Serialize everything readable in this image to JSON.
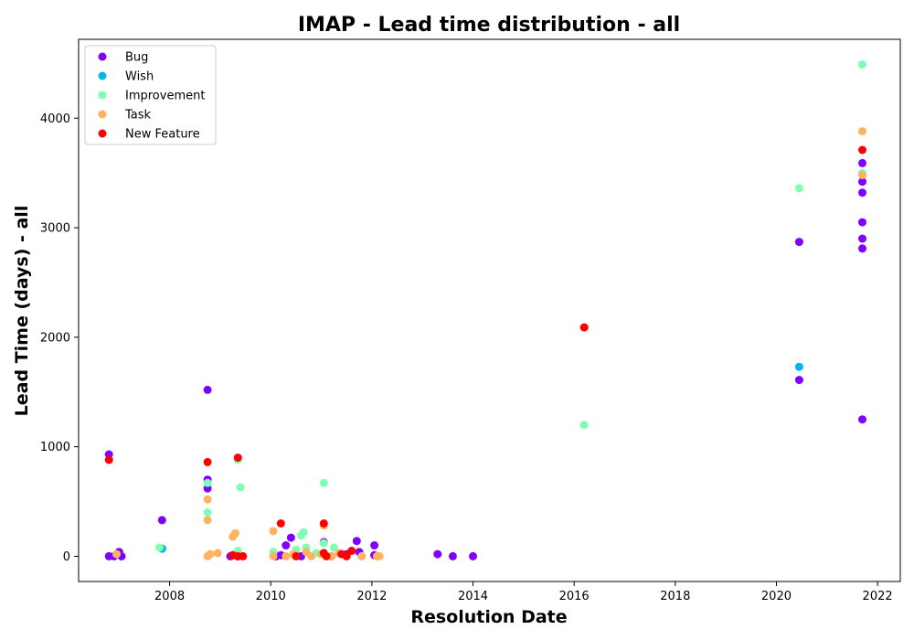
{
  "chart_data": {
    "type": "scatter",
    "title": "IMAP - Lead time distribution - all",
    "xlabel": "Resolution Date",
    "ylabel": "Lead Time (days) - all",
    "xlim": [
      2006.2,
      2022.45
    ],
    "ylim": [
      -230,
      4720
    ],
    "x_ticks": [
      2008,
      2010,
      2012,
      2014,
      2016,
      2018,
      2020,
      2022
    ],
    "y_ticks": [
      0,
      1000,
      2000,
      3000,
      4000
    ],
    "grid": false,
    "legend_position": "top-left",
    "series": [
      {
        "name": "Bug",
        "color": "#8000ff",
        "points": [
          [
            2006.8,
            0
          ],
          [
            2006.8,
            930
          ],
          [
            2006.9,
            0
          ],
          [
            2007.0,
            40
          ],
          [
            2007.05,
            0
          ],
          [
            2007.85,
            70
          ],
          [
            2007.85,
            330
          ],
          [
            2008.75,
            1520
          ],
          [
            2008.75,
            700
          ],
          [
            2008.75,
            620
          ],
          [
            2009.2,
            0
          ],
          [
            2009.25,
            10
          ],
          [
            2009.35,
            0
          ],
          [
            2010.1,
            0
          ],
          [
            2010.2,
            10
          ],
          [
            2010.3,
            100
          ],
          [
            2010.4,
            170
          ],
          [
            2010.6,
            0
          ],
          [
            2011.05,
            130
          ],
          [
            2011.2,
            0
          ],
          [
            2011.5,
            20
          ],
          [
            2011.7,
            140
          ],
          [
            2011.75,
            40
          ],
          [
            2012.05,
            100
          ],
          [
            2012.05,
            10
          ],
          [
            2013.3,
            20
          ],
          [
            2013.6,
            0
          ],
          [
            2014.0,
            0
          ],
          [
            2020.45,
            2870
          ],
          [
            2020.45,
            1610
          ],
          [
            2021.7,
            3590
          ],
          [
            2021.7,
            3420
          ],
          [
            2021.7,
            3320
          ],
          [
            2021.7,
            3050
          ],
          [
            2021.7,
            2900
          ],
          [
            2021.7,
            2810
          ],
          [
            2021.7,
            1250
          ]
        ]
      },
      {
        "name": "Wish",
        "color": "#00b5eb",
        "points": [
          [
            2007.85,
            70
          ],
          [
            2020.45,
            1730
          ]
        ]
      },
      {
        "name": "Improvement",
        "color": "#80ffb4",
        "points": [
          [
            2007.8,
            80
          ],
          [
            2008.75,
            670
          ],
          [
            2008.75,
            400
          ],
          [
            2009.35,
            880
          ],
          [
            2009.4,
            630
          ],
          [
            2009.35,
            50
          ],
          [
            2010.05,
            40
          ],
          [
            2010.5,
            60
          ],
          [
            2010.6,
            190
          ],
          [
            2010.65,
            220
          ],
          [
            2010.7,
            80
          ],
          [
            2010.9,
            30
          ],
          [
            2011.05,
            670
          ],
          [
            2011.05,
            120
          ],
          [
            2011.25,
            80
          ],
          [
            2011.8,
            0
          ],
          [
            2016.2,
            1200
          ],
          [
            2020.45,
            3360
          ],
          [
            2021.7,
            4490
          ],
          [
            2021.7,
            3500
          ]
        ]
      },
      {
        "name": "Task",
        "color": "#ffb360",
        "points": [
          [
            2006.95,
            20
          ],
          [
            2008.75,
            520
          ],
          [
            2008.75,
            330
          ],
          [
            2008.75,
            0
          ],
          [
            2008.8,
            20
          ],
          [
            2008.95,
            30
          ],
          [
            2009.25,
            180
          ],
          [
            2009.3,
            210
          ],
          [
            2010.05,
            230
          ],
          [
            2010.05,
            0
          ],
          [
            2010.3,
            0
          ],
          [
            2010.45,
            20
          ],
          [
            2010.7,
            40
          ],
          [
            2010.8,
            0
          ],
          [
            2011.0,
            20
          ],
          [
            2011.05,
            280
          ],
          [
            2011.2,
            0
          ],
          [
            2011.35,
            30
          ],
          [
            2011.8,
            0
          ],
          [
            2012.1,
            0
          ],
          [
            2012.15,
            0
          ],
          [
            2021.7,
            3880
          ],
          [
            2021.7,
            3480
          ]
        ]
      },
      {
        "name": "New Feature",
        "color": "#ff0000",
        "points": [
          [
            2006.8,
            880
          ],
          [
            2008.75,
            860
          ],
          [
            2009.25,
            10
          ],
          [
            2009.35,
            0
          ],
          [
            2009.35,
            900
          ],
          [
            2009.45,
            0
          ],
          [
            2010.2,
            300
          ],
          [
            2010.5,
            0
          ],
          [
            2011.05,
            300
          ],
          [
            2011.05,
            30
          ],
          [
            2011.1,
            0
          ],
          [
            2011.4,
            20
          ],
          [
            2011.5,
            0
          ],
          [
            2011.6,
            50
          ],
          [
            2016.2,
            2090
          ],
          [
            2021.7,
            3710
          ]
        ]
      }
    ]
  }
}
